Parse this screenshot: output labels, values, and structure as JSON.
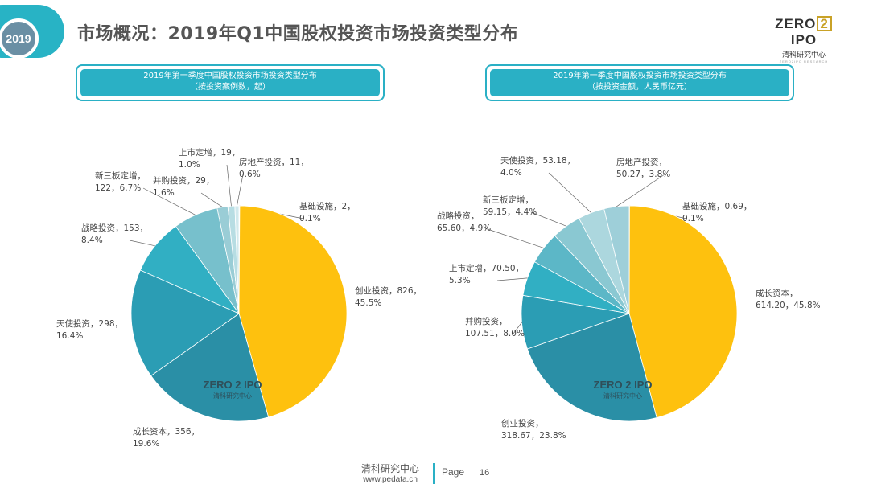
{
  "header": {
    "year": "2019",
    "title": "市场概况：2019年Q1中国股权投资市场投资类型分布",
    "logo_main_left": "ZERO",
    "logo_main_box": "2",
    "logo_main_right": "IPO",
    "logo_sub": "清科研究中心",
    "logo_tiny": "ZERO2IPO RESEARCH"
  },
  "charts": [
    {
      "box_line1": "2019年第一季度中国股权投资市场投资类型分布",
      "box_line2": "（按投资案例数，起）",
      "watermark_main": "ZERO 2 IPO",
      "watermark_sub": "清科研究中心"
    },
    {
      "box_line1": "2019年第一季度中国股权投资市场投资类型分布",
      "box_line2": "（按投资金额，人民币亿元）",
      "watermark_main": "ZERO 2 IPO",
      "watermark_sub": "清科研究中心"
    }
  ],
  "chart_data": [
    {
      "type": "pie",
      "title": "2019年第一季度中国股权投资市场投资类型分布（按投资案例数，起）",
      "unit": "起",
      "slices": [
        {
          "name": "基础设施",
          "value": 2,
          "pct": "0.1%",
          "label1": "基础设施，2，",
          "label2": "0.1%",
          "color": "#2a9fb8"
        },
        {
          "name": "创业投资",
          "value": 826,
          "pct": "45.5%",
          "label1": "创业投资，826，",
          "label2": "45.5%",
          "color": "#fec10e"
        },
        {
          "name": "成长资本",
          "value": 356,
          "pct": "19.6%",
          "label1": "成长资本，356，",
          "label2": "19.6%",
          "color": "#2a8fa6"
        },
        {
          "name": "天使投资",
          "value": 298,
          "pct": "16.4%",
          "label1": "天使投资，298，",
          "label2": "16.4%",
          "color": "#2b9db4"
        },
        {
          "name": "战略投资",
          "value": 153,
          "pct": "8.4%",
          "label1": "战略投资，153，",
          "label2": "8.4%",
          "color": "#31afc3"
        },
        {
          "name": "新三板定增",
          "value": 122,
          "pct": "6.7%",
          "label1": "新三板定增，",
          "label2": "122，6.7%",
          "color": "#77c0cc"
        },
        {
          "name": "并购投资",
          "value": 29,
          "pct": "1.6%",
          "label1": "并购投资，29，",
          "label2": "1.6%",
          "color": "#9acdd6"
        },
        {
          "name": "上市定增",
          "value": 19,
          "pct": "1.0%",
          "label1": "上市定增，19，",
          "label2": "1.0%",
          "color": "#b7dde3"
        },
        {
          "name": "房地产投资",
          "value": 11,
          "pct": "0.6%",
          "label1": "房地产投资，11，",
          "label2": "0.6%",
          "color": "#d1e9ed"
        }
      ]
    },
    {
      "type": "pie",
      "title": "2019年第一季度中国股权投资市场投资类型分布（按投资金额，人民币亿元）",
      "unit": "人民币亿元",
      "slices": [
        {
          "name": "基础设施",
          "value": 0.69,
          "pct": "0.1%",
          "label1": "基础设施，0.69，",
          "label2": "0.1%",
          "color": "#2a9fb8"
        },
        {
          "name": "成长资本",
          "value": 614.2,
          "pct": "45.8%",
          "label1": "成长资本，",
          "label2": "614.20，45.8%",
          "color": "#fec10e"
        },
        {
          "name": "创业投资",
          "value": 318.67,
          "pct": "23.8%",
          "label1": "创业投资，",
          "label2": "318.67，23.8%",
          "color": "#2a8fa6"
        },
        {
          "name": "并购投资",
          "value": 107.51,
          "pct": "8.0%",
          "label1": "并购投资，",
          "label2": "107.51，8.0%",
          "color": "#2b9db4"
        },
        {
          "name": "上市定增",
          "value": 70.5,
          "pct": "5.3%",
          "label1": "上市定增，70.50，",
          "label2": "5.3%",
          "color": "#31afc3"
        },
        {
          "name": "战略投资",
          "value": 65.6,
          "pct": "4.9%",
          "label1": "战略投资，",
          "label2": "65.60，4.9%",
          "color": "#5cb7c7"
        },
        {
          "name": "新三板定增",
          "value": 59.15,
          "pct": "4.4%",
          "label1": "新三板定增，",
          "label2": "59.15，4.4%",
          "color": "#8ac8d2"
        },
        {
          "name": "天使投资",
          "value": 53.18,
          "pct": "4.0%",
          "label1": "天使投资，53.18，",
          "label2": "4.0%",
          "color": "#acd7de"
        },
        {
          "name": "房地产投资",
          "value": 50.27,
          "pct": "3.8%",
          "label1": "房地产投资，",
          "label2": "50.27，3.8%",
          "color": "#9ecfd9"
        }
      ]
    }
  ],
  "footer": {
    "org": "清科研究中心",
    "url": "www.pedata.cn",
    "page_label": "Page",
    "page_number": "16"
  }
}
